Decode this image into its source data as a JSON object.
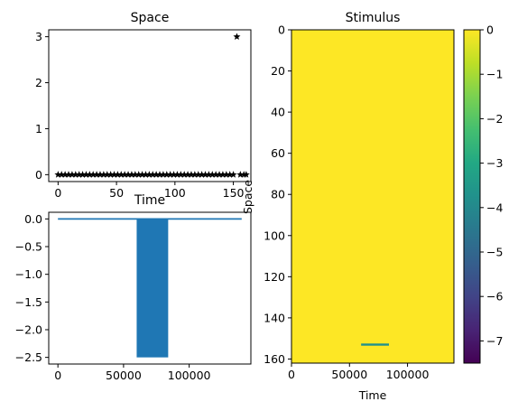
{
  "chart_data": [
    {
      "type": "scatter",
      "title": "Space",
      "xlabel": "",
      "ylabel": "",
      "marker": "star",
      "color": "#000000",
      "xlim": [
        -8,
        165
      ],
      "ylim": [
        -0.15,
        3.15
      ],
      "xticks": [
        0,
        50,
        100,
        150
      ],
      "yticks": [
        0,
        1,
        2,
        3
      ],
      "x_range": [
        0,
        161
      ],
      "x_step": 3,
      "baseline_value": 0,
      "highlight": {
        "x": 153,
        "y": 3
      }
    },
    {
      "type": "line",
      "title": "Time",
      "xlabel": "",
      "ylabel": "",
      "color": "#1f77b4",
      "xlim": [
        -7000,
        147000
      ],
      "ylim": [
        -2.62,
        0.12
      ],
      "xticks": [
        0,
        50000,
        100000
      ],
      "yticks": [
        0.0,
        -0.5,
        -1.0,
        -1.5,
        -2.0,
        -2.5
      ],
      "x_range": [
        0,
        140000
      ],
      "baseline_value": 0,
      "pulse": {
        "x_start": 60000,
        "x_end": 84000,
        "low": -2.5,
        "high": 0
      }
    },
    {
      "type": "heatmap",
      "title": "Stimulus",
      "xlabel": "Time",
      "ylabel": "Space",
      "colormap": "viridis",
      "background_value": 0,
      "background_color": "#fde725",
      "xlim": [
        0,
        140000
      ],
      "ylim": [
        162,
        0
      ],
      "xticks": [
        0,
        50000,
        100000
      ],
      "yticks": [
        0,
        20,
        40,
        60,
        80,
        100,
        120,
        140,
        160
      ],
      "stripe": {
        "row": 153,
        "x_start": 60000,
        "x_end": 84000,
        "color": "#21918c"
      },
      "colorbar": {
        "min": -7.5,
        "max": 0,
        "ticks": [
          0,
          -1,
          -2,
          -3,
          -4,
          -5,
          -6,
          -7
        ]
      }
    }
  ]
}
